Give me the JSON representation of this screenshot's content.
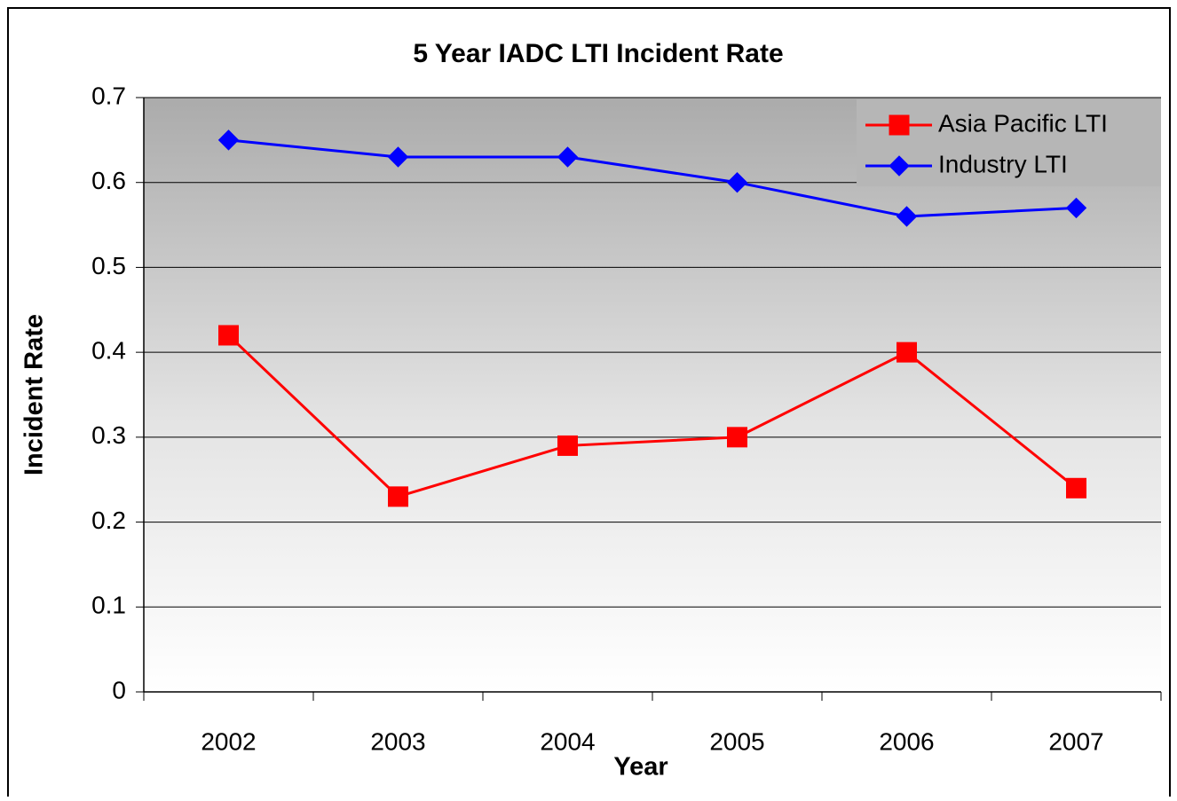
{
  "chart_data": {
    "type": "line",
    "title": "5 Year IADC LTI Incident Rate",
    "x_label": "Year",
    "y_label": "Incident Rate",
    "categories": [
      "2002",
      "2003",
      "2004",
      "2005",
      "2006",
      "2007"
    ],
    "series": [
      {
        "name": "Asia Pacific LTI",
        "color": "#ff0000",
        "marker": "square",
        "values": [
          0.42,
          0.23,
          0.29,
          0.3,
          0.4,
          0.24
        ]
      },
      {
        "name": "Industry LTI",
        "color": "#0000ff",
        "marker": "diamond",
        "values": [
          0.65,
          0.63,
          0.63,
          0.6,
          0.56,
          0.57
        ]
      }
    ],
    "ylim": [
      0,
      0.7
    ],
    "yticks": [
      0,
      0.1,
      0.2,
      0.3,
      0.4,
      0.5,
      0.6,
      0.7
    ],
    "grid": true,
    "legend": "upper right"
  }
}
